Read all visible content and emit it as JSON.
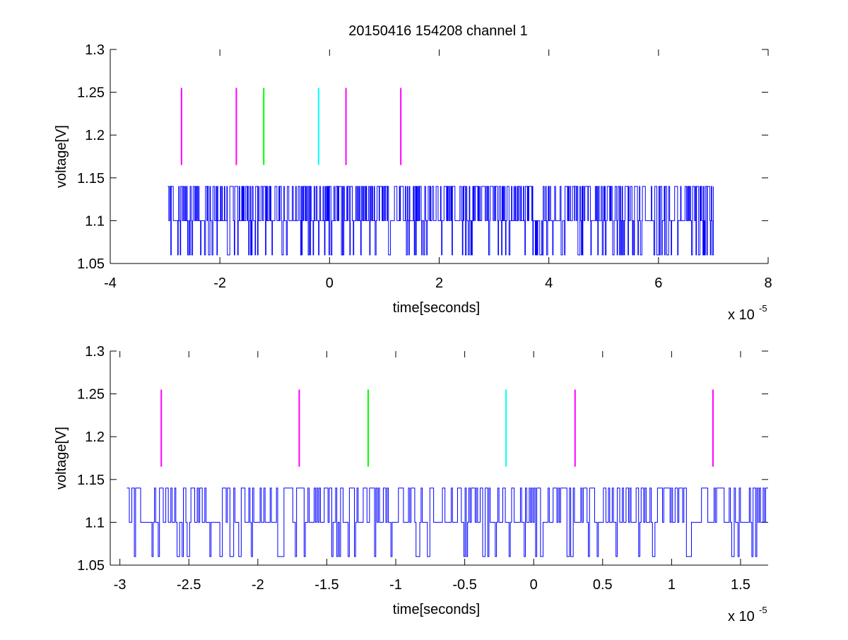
{
  "figure": {
    "title": "20150416 154208 channel 1"
  },
  "chart_data": [
    {
      "type": "line",
      "title": "20150416 154208 channel 1",
      "xlabel": "time[seconds]",
      "ylabel": "voltage[V]",
      "x_multiplier": "x 10",
      "x_exponent": "-5",
      "xlim": [
        -4,
        8
      ],
      "ylim": [
        1.05,
        1.3
      ],
      "xticks": [
        -4,
        -2,
        0,
        2,
        4,
        6,
        8
      ],
      "xtick_labels": [
        "-4",
        "-2",
        "0",
        "2",
        "4",
        "6",
        "8"
      ],
      "yticks": [
        1.05,
        1.1,
        1.15,
        1.2,
        1.25,
        1.3
      ],
      "ytick_labels": [
        "1.05",
        "1.1",
        "1.15",
        "1.2",
        "1.25",
        "1.3"
      ],
      "grid": false,
      "signal": {
        "color": "#0000ff",
        "x_range": [
          -2.95,
          7.0
        ],
        "levels": [
          1.06,
          1.1,
          1.14
        ],
        "seed": 7,
        "samples": 1100
      },
      "markers": {
        "y_range": [
          1.165,
          1.255
        ],
        "items": [
          {
            "x": -2.7,
            "color": "#ff00ff"
          },
          {
            "x": -1.7,
            "color": "#ff00ff"
          },
          {
            "x": -1.2,
            "color": "#00ff00"
          },
          {
            "x": -0.2,
            "color": "#00ffff"
          },
          {
            "x": 0.3,
            "color": "#ff00ff"
          },
          {
            "x": 1.3,
            "color": "#ff00ff"
          }
        ]
      }
    },
    {
      "type": "line",
      "xlabel": "time[seconds]",
      "ylabel": "voltage[V]",
      "x_multiplier": "x 10",
      "x_exponent": "-5",
      "xlim": [
        -3.07,
        1.7
      ],
      "ylim": [
        1.05,
        1.3
      ],
      "xticks": [
        -3,
        -2.5,
        -2,
        -1.5,
        -1,
        -0.5,
        0,
        0.5,
        1,
        1.5
      ],
      "xtick_labels": [
        "-3",
        "-2.5",
        "-2",
        "-1.5",
        "-1",
        "-0.5",
        "0",
        "0.5",
        "1",
        "1.5"
      ],
      "yticks": [
        1.05,
        1.1,
        1.15,
        1.2,
        1.25,
        1.3
      ],
      "ytick_labels": [
        "1.05",
        "1.1",
        "1.15",
        "1.2",
        "1.25",
        "1.3"
      ],
      "grid": false,
      "signal": {
        "color": "#0000ff",
        "x_range": [
          -2.95,
          1.7
        ],
        "levels": [
          1.06,
          1.1,
          1.14
        ],
        "seed": 7,
        "samples": 510
      },
      "markers": {
        "y_range": [
          1.165,
          1.255
        ],
        "items": [
          {
            "x": -2.7,
            "color": "#ff00ff"
          },
          {
            "x": -1.7,
            "color": "#ff00ff"
          },
          {
            "x": -1.2,
            "color": "#00ff00"
          },
          {
            "x": -0.2,
            "color": "#00ffff"
          },
          {
            "x": 0.3,
            "color": "#ff00ff"
          },
          {
            "x": 1.3,
            "color": "#ff00ff"
          }
        ]
      }
    }
  ]
}
